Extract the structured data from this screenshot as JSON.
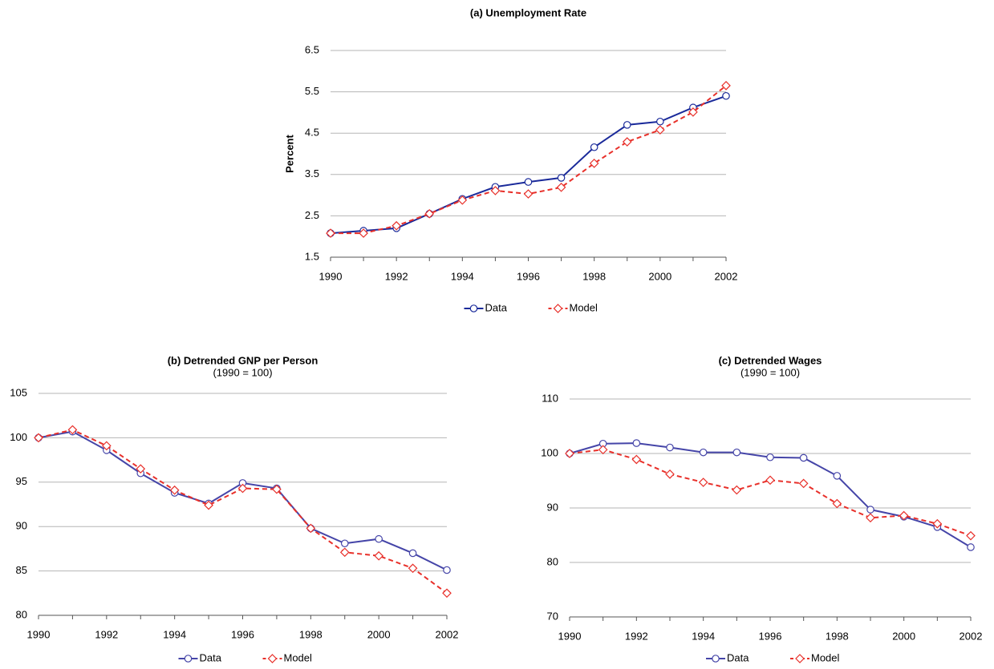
{
  "chart_data": [
    {
      "type": "line",
      "title": "(a) Unemployment Rate",
      "ylabel": "Percent",
      "x": [
        1990,
        1991,
        1992,
        1993,
        1994,
        1995,
        1996,
        1997,
        1998,
        1999,
        2000,
        2001,
        2002
      ],
      "xlim": [
        1990,
        2002
      ],
      "xticks": [
        1990,
        1992,
        1994,
        1996,
        1998,
        2000,
        2002
      ],
      "ylim": [
        1.5,
        6.5
      ],
      "yticks": [
        1.5,
        2.5,
        3.5,
        4.5,
        5.5,
        6.5
      ],
      "grid": true,
      "legend": "bottom",
      "series": [
        {
          "name": "Data",
          "color": "#1a2a9a",
          "marker": "circle",
          "line_style": "solid",
          "values": [
            2.08,
            2.14,
            2.2,
            2.55,
            2.91,
            3.2,
            3.32,
            3.42,
            4.16,
            4.7,
            4.78,
            5.12,
            5.4
          ]
        },
        {
          "name": "Model",
          "color": "#e8302a",
          "marker": "diamond",
          "line_style": "dashed",
          "values": [
            2.08,
            2.08,
            2.26,
            2.55,
            2.88,
            3.11,
            3.03,
            3.19,
            3.77,
            4.29,
            4.58,
            5.01,
            5.65
          ]
        }
      ]
    },
    {
      "type": "line",
      "title": "(b) Detrended GNP per Person",
      "subtitle": "(1990 = 100)",
      "x": [
        1990,
        1991,
        1992,
        1993,
        1994,
        1995,
        1996,
        1997,
        1998,
        1999,
        2000,
        2001,
        2002
      ],
      "xlim": [
        1990,
        2002
      ],
      "xticks": [
        1990,
        1992,
        1994,
        1996,
        1998,
        2000,
        2002
      ],
      "ylim": [
        80,
        105
      ],
      "yticks": [
        80,
        85,
        90,
        95,
        100,
        105
      ],
      "grid": true,
      "legend": "bottom",
      "series": [
        {
          "name": "Data",
          "color": "#4545a8",
          "marker": "circle",
          "line_style": "solid",
          "values": [
            100,
            100.7,
            98.6,
            96.0,
            93.8,
            92.6,
            94.9,
            94.3,
            89.8,
            88.1,
            88.6,
            87.0,
            85.1
          ]
        },
        {
          "name": "Model",
          "color": "#e8302a",
          "marker": "diamond",
          "line_style": "dashed",
          "values": [
            100,
            100.9,
            99.1,
            96.5,
            94.1,
            92.4,
            94.3,
            94.2,
            89.8,
            87.1,
            86.7,
            85.3,
            82.5
          ]
        }
      ]
    },
    {
      "type": "line",
      "title": "(c) Detrended Wages",
      "subtitle": "(1990 = 100)",
      "x": [
        1990,
        1991,
        1992,
        1993,
        1994,
        1995,
        1996,
        1997,
        1998,
        1999,
        2000,
        2001,
        2002
      ],
      "xlim": [
        1990,
        2002
      ],
      "xticks": [
        1990,
        1992,
        1994,
        1996,
        1998,
        2000,
        2002
      ],
      "ylim": [
        70,
        110
      ],
      "yticks": [
        70,
        80,
        90,
        100,
        110
      ],
      "grid": true,
      "legend": "bottom",
      "series": [
        {
          "name": "Data",
          "color": "#4545a8",
          "marker": "circle",
          "line_style": "solid",
          "values": [
            100,
            101.8,
            101.9,
            101.1,
            100.2,
            100.2,
            99.3,
            99.2,
            95.9,
            89.7,
            88.4,
            86.5,
            82.8
          ]
        },
        {
          "name": "Model",
          "color": "#e8302a",
          "marker": "diamond",
          "line_style": "dashed",
          "values": [
            100,
            100.7,
            98.9,
            96.2,
            94.7,
            93.3,
            95.1,
            94.5,
            90.8,
            88.2,
            88.6,
            87.1,
            84.9
          ]
        }
      ]
    }
  ]
}
